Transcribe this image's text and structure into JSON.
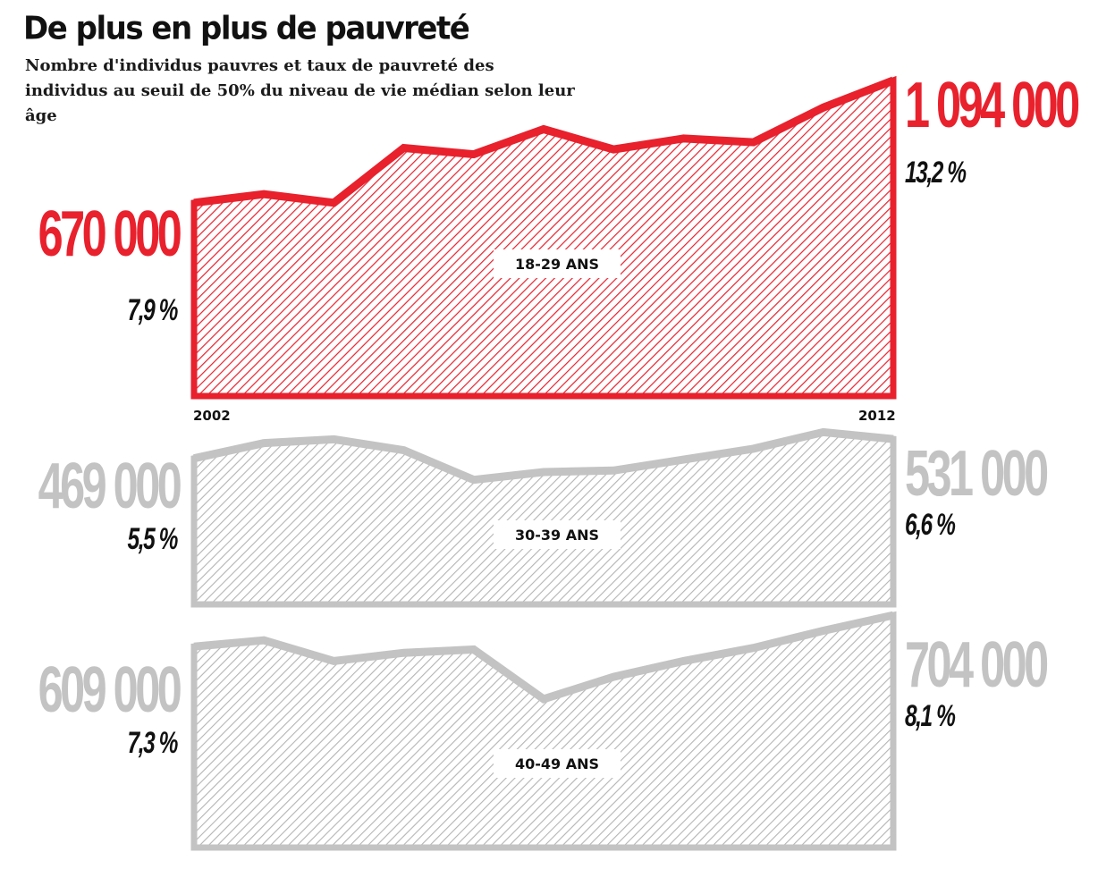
{
  "title": "De plus en plus de pauvreté",
  "subtitle": "Nombre d'individus pauvres et taux de pauvreté des individus au seuil de 50% du niveau de vie médian selon leur âge",
  "colors": {
    "red": "#e8212d",
    "grey": "#c3c3c3",
    "text": "#111111"
  },
  "axis": {
    "start_label": "2002",
    "end_label": "2012"
  },
  "chart_data": [
    {
      "type": "area",
      "label": "18-29 ANS",
      "x": [
        2002,
        2003,
        2004,
        2005,
        2006,
        2007,
        2008,
        2009,
        2010,
        2011,
        2012
      ],
      "values": [
        670000,
        700000,
        670000,
        860000,
        838000,
        925000,
        855000,
        893000,
        880000,
        1000000,
        1094000
      ],
      "start_value_label": "670 000",
      "end_value_label": "1 094 000",
      "start_rate_label": "7,9 %",
      "end_rate_label": "13,2 %",
      "color": "#e8212d",
      "ylim": [
        0,
        1094000
      ]
    },
    {
      "type": "area",
      "label": "30-39 ANS",
      "x": [
        2002,
        2003,
        2004,
        2005,
        2006,
        2007,
        2008,
        2009,
        2010,
        2011,
        2012
      ],
      "values": [
        469000,
        518000,
        530000,
        495000,
        400000,
        425000,
        430000,
        465000,
        500000,
        553000,
        531000
      ],
      "start_value_label": "469 000",
      "end_value_label": "531 000",
      "start_rate_label": "5,5 %",
      "end_rate_label": "6,6 %",
      "color": "#c3c3c3",
      "ylim": [
        0,
        850000
      ]
    },
    {
      "type": "area",
      "label": "40-49 ANS",
      "x": [
        2002,
        2003,
        2004,
        2005,
        2006,
        2007,
        2008,
        2009,
        2010,
        2011,
        2012
      ],
      "values": [
        609000,
        628000,
        565000,
        590000,
        600000,
        450000,
        517000,
        565000,
        605000,
        657000,
        704000
      ],
      "start_value_label": "609 000",
      "end_value_label": "704 000",
      "start_rate_label": "7,3 %",
      "end_rate_label": "8,1 %",
      "color": "#c3c3c3",
      "ylim": [
        0,
        1200000
      ]
    }
  ]
}
